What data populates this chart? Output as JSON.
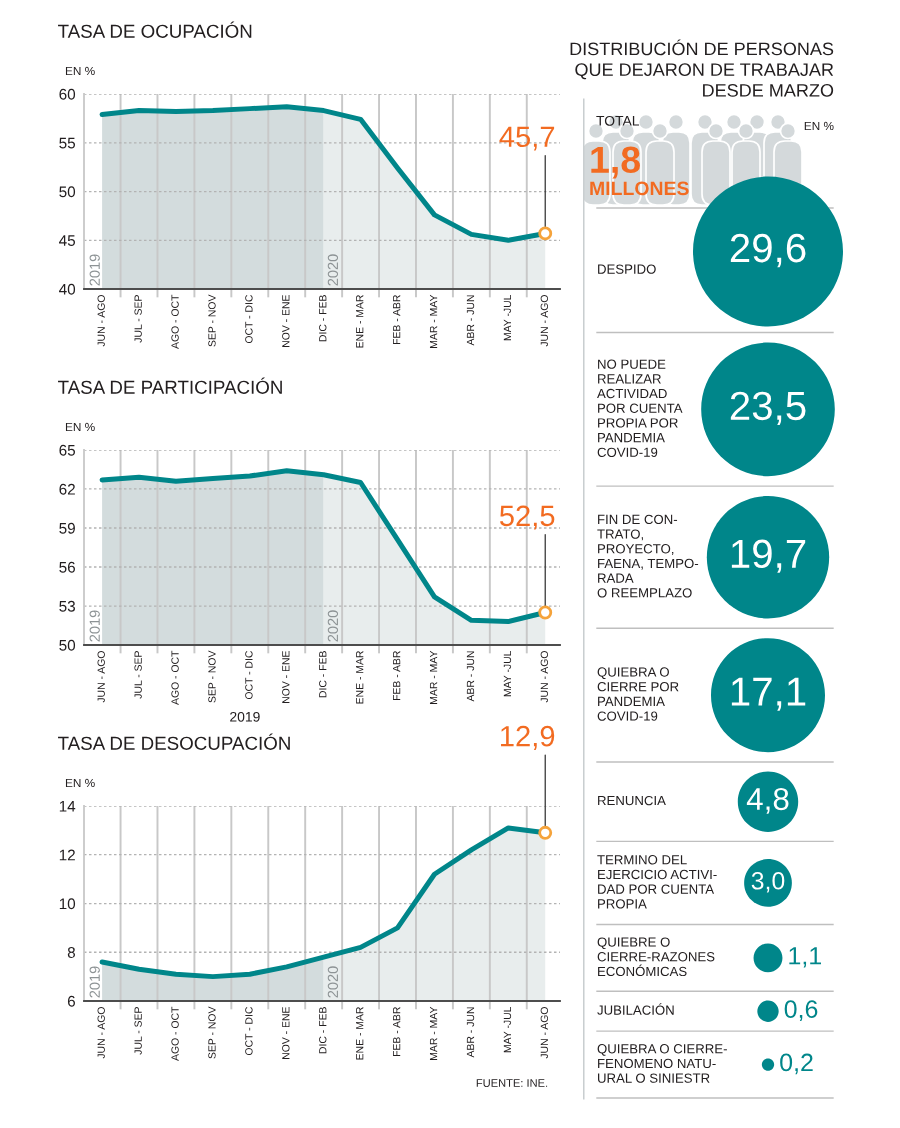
{
  "chart_data": [
    {
      "type": "area",
      "title": "TASA DE OCUPACIÓN",
      "ylabel": "EN %",
      "categories": [
        "JUN - AGO",
        "JUL - SEP",
        "AGO - OCT",
        "SEP - NOV",
        "OCT - DIC",
        "NOV - ENE",
        "DIC - FEB",
        "ENE - MAR",
        "FEB - ABR",
        "MAR - MAY",
        "ABR - JUN",
        "MAY -JUL",
        "JUN - AGO"
      ],
      "series": [
        {
          "name": "2019",
          "color": "#d3dcdd",
          "values": [
            57.9,
            58.3,
            58.2,
            58.3,
            58.5,
            58.7,
            58.3,
            null,
            null,
            null,
            null,
            null,
            null
          ]
        },
        {
          "name": "2020",
          "color": "#e8eded",
          "values": [
            null,
            null,
            null,
            null,
            null,
            null,
            58.3,
            57.4,
            52.4,
            47.6,
            45.6,
            45.0,
            45.7
          ]
        },
        {
          "type": "line",
          "color": "#00868a",
          "values": [
            57.9,
            58.3,
            58.2,
            58.3,
            58.5,
            58.7,
            58.3,
            57.4,
            52.4,
            47.6,
            45.6,
            45.0,
            45.7
          ],
          "value_labels": [
            null,
            null,
            null,
            null,
            null,
            null,
            null,
            null,
            null,
            null,
            null,
            null,
            "45,7"
          ]
        }
      ],
      "ylim": [
        40,
        60
      ],
      "yticks": [
        40,
        45,
        50,
        55,
        60
      ],
      "grid": true
    },
    {
      "type": "area",
      "title": "TASA DE PARTICIPACIÓN",
      "ylabel": "EN %",
      "xlabel": "2019",
      "categories": [
        "JUN - AGO",
        "JUL - SEP",
        "AGO - OCT",
        "SEP - NOV",
        "OCT - DIC",
        "NOV - ENE",
        "DIC - FEB",
        "ENE - MAR",
        "FEB - ABR",
        "MAR - MAY",
        "ABR - JUN",
        "MAY -JUL",
        "JUN - AGO"
      ],
      "series": [
        {
          "name": "2019",
          "color": "#d3dcdd",
          "values": [
            62.7,
            62.9,
            62.6,
            62.8,
            63.0,
            63.4,
            63.1,
            null,
            null,
            null,
            null,
            null,
            null
          ]
        },
        {
          "name": "2020",
          "color": "#e8eded",
          "values": [
            null,
            null,
            null,
            null,
            null,
            null,
            63.1,
            62.5,
            58.1,
            53.7,
            51.9,
            51.8,
            52.5
          ]
        },
        {
          "type": "line",
          "color": "#00868a",
          "values": [
            62.7,
            62.9,
            62.6,
            62.8,
            63.0,
            63.4,
            63.1,
            62.5,
            58.1,
            53.7,
            51.9,
            51.8,
            52.5
          ],
          "value_labels": [
            null,
            null,
            null,
            null,
            null,
            null,
            null,
            null,
            null,
            null,
            null,
            null,
            "52,5"
          ]
        }
      ],
      "ylim": [
        50,
        65
      ],
      "yticks": [
        50,
        53,
        56,
        59,
        62,
        65
      ],
      "grid": true
    },
    {
      "type": "area",
      "title": "TASA DE DESOCUPACIÓN",
      "ylabel": "EN %",
      "categories": [
        "JUN - AGO",
        "JUL - SEP",
        "AGO - OCT",
        "SEP - NOV",
        "OCT - DIC",
        "NOV - ENE",
        "DIC - FEB",
        "ENE - MAR",
        "FEB - ABR",
        "MAR - MAY",
        "ABR - JUN",
        "MAY -JUL",
        "JUN - AGO"
      ],
      "series": [
        {
          "name": "2019",
          "color": "#d3dcdd",
          "values": [
            7.6,
            7.3,
            7.1,
            7.0,
            7.1,
            7.4,
            7.8,
            null,
            null,
            null,
            null,
            null,
            null
          ]
        },
        {
          "name": "2020",
          "color": "#e8eded",
          "values": [
            null,
            null,
            null,
            null,
            null,
            null,
            7.8,
            8.2,
            9.0,
            11.2,
            12.2,
            13.1,
            12.9
          ]
        },
        {
          "type": "line",
          "color": "#00868a",
          "values": [
            7.6,
            7.3,
            7.1,
            7.0,
            7.1,
            7.4,
            7.8,
            8.2,
            9.0,
            11.2,
            12.2,
            13.1,
            12.9
          ],
          "value_labels": [
            null,
            null,
            null,
            null,
            null,
            null,
            null,
            null,
            null,
            null,
            null,
            null,
            "12,9"
          ]
        }
      ],
      "ylim": [
        6,
        14
      ],
      "yticks": [
        6,
        8,
        10,
        12,
        14
      ],
      "grid": true,
      "annotations": [
        "FUENTE: INE."
      ]
    },
    {
      "type": "other",
      "title": "DISTRIBUCIÓN DE PERSONAS\nQUE DEJARON DE TRABAJAR\nDESDE MARZO",
      "ylabel": "EN %",
      "annotations": [
        "TOTAL",
        "1,8",
        "MILLONES"
      ],
      "categories": [
        "DESPIDO",
        "NO PUEDE\nREALIZAR\nACTIVIDAD\nPOR CUENTA\nPROPIA POR\nPANDEMIA\nCOVID-19",
        "FIN DE CON-\nTRATO,\nPROYECTO,\nFAENA, TEMPO-\nRADA\nO REEMPLAZO",
        "QUIEBRA O\nCIERRE POR\nPANDEMIA\nCOVID-19",
        "RENUNCIA",
        "TERMINO DEL\nEJERCICIO ACTIVI-\nDAD POR CUENTA\nPROPIA",
        "QUIEBRE O\nCIERRE-RAZONES\nECONÓMICAS",
        "JUBILACIÓN",
        "QUIEBRA O CIERRE-\nFENOMENO NATU-\nURAL O SINIESTR"
      ],
      "values": [
        29.6,
        23.5,
        19.7,
        17.1,
        4.8,
        3.0,
        1.1,
        0.6,
        0.2
      ],
      "value_labels": [
        "29,6",
        "23,5",
        "19,7",
        "17,1",
        "4,8",
        "3,0",
        "1,1",
        "0,6",
        "0,2"
      ],
      "color": "#00868a"
    }
  ]
}
